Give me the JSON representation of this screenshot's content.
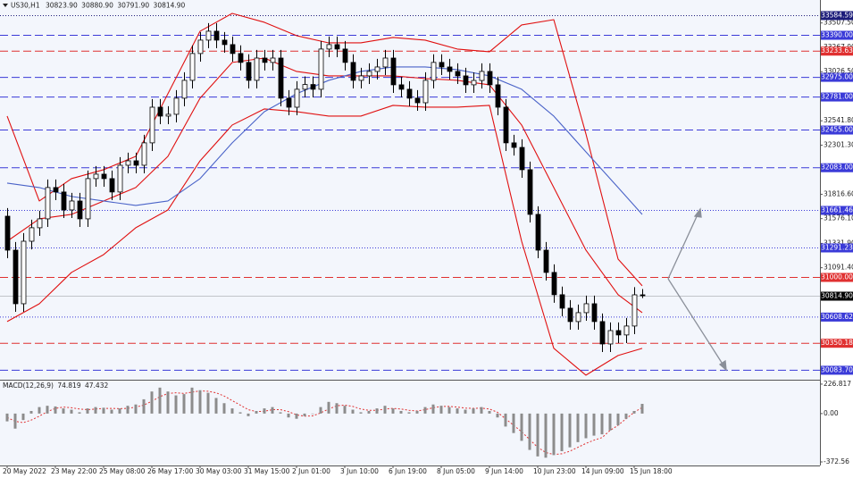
{
  "chart_data": [
    {
      "type": "candlestick",
      "title": "US30,H1",
      "last_bar_labels": [
        "30823.90",
        "30880.90",
        "30791.90",
        "30814.90"
      ],
      "categories": [
        "20 May 2022",
        null,
        null,
        null,
        null,
        null,
        "23 May 22:00",
        null,
        null,
        null,
        null,
        null,
        "25 May 08:00",
        null,
        null,
        null,
        null,
        null,
        "26 May 17:00",
        null,
        null,
        null,
        null,
        null,
        "30 May 03:00",
        null,
        null,
        null,
        null,
        null,
        "31 May 15:00",
        null,
        null,
        null,
        null,
        null,
        "2 Jun 01:00",
        null,
        null,
        null,
        null,
        null,
        "3 Jun 10:00",
        null,
        null,
        null,
        null,
        null,
        "6 Jun 19:00",
        null,
        null,
        null,
        null,
        null,
        "8 Jun 05:00",
        null,
        null,
        null,
        null,
        null,
        "9 Jun 14:00",
        null,
        null,
        null,
        null,
        null,
        "10 Jun 23:00",
        null,
        null,
        null,
        null,
        null,
        "14 Jun 09:00",
        null,
        null,
        null,
        null,
        null,
        "15 Jun 18:00",
        null
      ],
      "ohlc": [
        [
          31600,
          31680,
          31185,
          31265
        ],
        [
          31265,
          31345,
          30656,
          30736
        ],
        [
          30736,
          31433,
          30656,
          31353
        ],
        [
          31353,
          31566,
          31273,
          31486
        ],
        [
          31486,
          31654,
          31406,
          31574
        ],
        [
          31574,
          31963,
          31494,
          31883
        ],
        [
          31883,
          31963,
          31759,
          31839
        ],
        [
          31839,
          31919,
          31582,
          31662
        ],
        [
          31662,
          31830,
          31582,
          31750
        ],
        [
          31750,
          31830,
          31494,
          31574
        ],
        [
          31574,
          32051,
          31494,
          31971
        ],
        [
          31971,
          32095,
          31891,
          32015
        ],
        [
          32015,
          32095,
          31891,
          31971
        ],
        [
          31971,
          32051,
          31759,
          31839
        ],
        [
          31839,
          32183,
          31759,
          32103
        ],
        [
          32103,
          32227,
          32023,
          32147
        ],
        [
          32147,
          32227,
          32023,
          32103
        ],
        [
          32103,
          32404,
          32023,
          32324
        ],
        [
          32324,
          32756,
          32244,
          32676
        ],
        [
          32676,
          32756,
          32508,
          32588
        ],
        [
          32588,
          32686,
          32508,
          32606
        ],
        [
          32606,
          32845,
          32526,
          32765
        ],
        [
          32765,
          33021,
          32685,
          32941
        ],
        [
          32941,
          33286,
          32861,
          33206
        ],
        [
          33206,
          33418,
          33126,
          33338
        ],
        [
          33338,
          33506,
          33258,
          33426
        ],
        [
          33426,
          33506,
          33258,
          33338
        ],
        [
          33338,
          33418,
          33214,
          33294
        ],
        [
          33294,
          33374,
          33126,
          33206
        ],
        [
          33206,
          33286,
          33038,
          33118
        ],
        [
          33118,
          33198,
          32861,
          32941
        ],
        [
          32941,
          33241,
          32861,
          33161
        ],
        [
          33161,
          33241,
          33038,
          33118
        ],
        [
          33118,
          33241,
          33038,
          33161
        ],
        [
          33161,
          33241,
          32685,
          32765
        ],
        [
          32765,
          32845,
          32596,
          32676
        ],
        [
          32676,
          32933,
          32596,
          32853
        ],
        [
          32853,
          32980,
          32773,
          32900
        ],
        [
          32900,
          32980,
          32773,
          32853
        ],
        [
          32853,
          33330,
          32773,
          33250
        ],
        [
          33250,
          33374,
          33170,
          33294
        ],
        [
          33294,
          33374,
          33170,
          33250
        ],
        [
          33250,
          33330,
          33038,
          33118
        ],
        [
          33118,
          33198,
          32861,
          32941
        ],
        [
          32941,
          33065,
          32861,
          32985
        ],
        [
          32985,
          33109,
          32905,
          33029
        ],
        [
          33029,
          33153,
          32949,
          33073
        ],
        [
          33073,
          33241,
          32993,
          33161
        ],
        [
          33161,
          33241,
          32817,
          32897
        ],
        [
          32897,
          32977,
          32773,
          32853
        ],
        [
          32853,
          32933,
          32685,
          32765
        ],
        [
          32765,
          32845,
          32640,
          32720
        ],
        [
          32720,
          33021,
          32640,
          32941
        ],
        [
          32941,
          33198,
          32861,
          33118
        ],
        [
          33118,
          33198,
          32993,
          33073
        ],
        [
          33073,
          33153,
          32949,
          33029
        ],
        [
          33029,
          33109,
          32905,
          32985
        ],
        [
          32985,
          33065,
          32817,
          32897
        ],
        [
          32897,
          33020,
          32817,
          32940
        ],
        [
          32940,
          33109,
          32860,
          33029
        ],
        [
          33029,
          33109,
          32817,
          32897
        ],
        [
          32897,
          32977,
          32596,
          32676
        ],
        [
          32676,
          32756,
          32244,
          32324
        ],
        [
          32324,
          32404,
          32199,
          32279
        ],
        [
          32279,
          32359,
          31979,
          32059
        ],
        [
          32059,
          32139,
          31538,
          31618
        ],
        [
          31618,
          31698,
          31185,
          31265
        ],
        [
          31265,
          31345,
          30965,
          31045
        ],
        [
          31045,
          31125,
          30745,
          30825
        ],
        [
          30825,
          30905,
          30612,
          30692
        ],
        [
          30692,
          30772,
          30480,
          30560
        ],
        [
          30560,
          30728,
          30480,
          30648
        ],
        [
          30648,
          30816,
          30568,
          30736
        ],
        [
          30736,
          30816,
          30480,
          30560
        ],
        [
          30560,
          30640,
          30259,
          30339
        ],
        [
          30339,
          30551,
          30259,
          30471
        ],
        [
          30471,
          30551,
          30348,
          30428
        ],
        [
          30428,
          30596,
          30348,
          30516
        ],
        [
          30516,
          30900,
          30436,
          30823.9
        ],
        [
          30823.9,
          30880.9,
          30791.9,
          30814.9
        ]
      ],
      "lines": [
        {
          "color": "#e01010",
          "x": [
            0,
            4,
            8,
            12,
            16,
            20,
            24,
            28,
            32,
            36,
            40,
            44,
            48,
            52,
            56,
            60,
            64,
            68,
            72,
            76,
            79
          ],
          "values": [
            32588,
            31750,
            31971,
            32059,
            32191,
            32809,
            33426,
            33602,
            33514,
            33382,
            33311,
            33311,
            33364,
            33338,
            33250,
            33223,
            33488,
            33540,
            32412,
            31177,
            30913
          ]
        },
        {
          "color": "#e01010",
          "x": [
            0,
            4,
            8,
            12,
            16,
            20,
            24,
            28,
            32,
            36,
            40,
            44,
            48,
            52,
            56,
            60,
            64,
            68,
            72,
            76,
            79
          ],
          "values": [
            31353,
            31574,
            31618,
            31750,
            31883,
            32191,
            32765,
            33118,
            33161,
            33029,
            32985,
            32985,
            32985,
            32959,
            32941,
            32897,
            32500,
            31883,
            31265,
            30825,
            30648
          ]
        },
        {
          "color": "#e01010",
          "x": [
            0,
            4,
            8,
            12,
            16,
            20,
            24,
            28,
            32,
            36,
            40,
            44,
            48,
            52,
            56,
            60,
            64,
            68,
            72,
            76,
            79
          ],
          "values": [
            30560,
            30736,
            31045,
            31221,
            31486,
            31662,
            32147,
            32500,
            32659,
            32632,
            32588,
            32588,
            32694,
            32676,
            32676,
            32694,
            31353,
            30296,
            30031,
            30225,
            30296
          ]
        },
        {
          "color": "#4a63c8",
          "x": [
            0,
            4,
            8,
            12,
            16,
            20,
            24,
            28,
            32,
            36,
            40,
            44,
            48,
            52,
            56,
            60,
            64,
            68,
            72,
            76,
            79
          ],
          "values": [
            31927,
            31883,
            31795,
            31750,
            31706,
            31750,
            31971,
            32324,
            32632,
            32809,
            32941,
            33029,
            33073,
            33073,
            33047,
            32985,
            32853,
            32588,
            32235,
            31883,
            31618
          ]
        }
      ],
      "levels": [
        {
          "value": 33584.59,
          "label": "33584.59",
          "color": "#1c1c7a",
          "style": "dotted"
        },
        {
          "value": 33390,
          "label": "33390.00",
          "color": "#3a3ad8",
          "style": "dashed"
        },
        {
          "value": 33233.63,
          "label": "33233.63",
          "color": "#e03030",
          "style": "dashed"
        },
        {
          "value": 32975,
          "label": "32975.00",
          "color": "#3a3ad8",
          "style": "dashed"
        },
        {
          "value": 32781,
          "label": "32781.00",
          "color": "#3a3ad8",
          "style": "dashed"
        },
        {
          "value": 32455,
          "label": "32455.00",
          "color": "#3a3ad8",
          "style": "dashed"
        },
        {
          "value": 32083,
          "label": "32083.00",
          "color": "#3a3ad8",
          "style": "dashed"
        },
        {
          "value": 31661.46,
          "label": "31661.46",
          "color": "#3a3ad8",
          "style": "dotted"
        },
        {
          "value": 31291.23,
          "label": "31291.23",
          "color": "#3a3ad8",
          "style": "dotted"
        },
        {
          "value": 31000,
          "label": "31000.00",
          "color": "#e03030",
          "style": "dashed"
        },
        {
          "value": 30814.9,
          "label": "30814.90",
          "color": "#000000",
          "style": "solid"
        },
        {
          "value": 30608.62,
          "label": "30608.62",
          "color": "#3a3ad8",
          "style": "dotted"
        },
        {
          "value": 30350.18,
          "label": "30350.18",
          "color": "#e03030",
          "style": "dashed"
        },
        {
          "value": 30083.7,
          "label": "30083.70",
          "color": "#3a3ad8",
          "style": "dashed"
        }
      ],
      "ylim": [
        29986,
        33690
      ],
      "yticks": [
        {
          "value": 33507.5,
          "label": "33507.50"
        },
        {
          "value": 33267,
          "label": "33267.00"
        },
        {
          "value": 33026.5,
          "label": "33026.50"
        },
        {
          "value": 32541.8,
          "label": "32541.80"
        },
        {
          "value": 32301.3,
          "label": "32301.30"
        },
        {
          "value": 31816.6,
          "label": "31816.60"
        },
        {
          "value": 31576.1,
          "label": "31576.10"
        },
        {
          "value": 31331.9,
          "label": "31331.90"
        },
        {
          "value": 31091.4,
          "label": "31091.40"
        }
      ]
    },
    {
      "type": "bar",
      "title": "MACD(12,26,9)",
      "series": [
        {
          "color": "#8c8c8c",
          "values": [
            -60,
            -116,
            -50,
            20,
            50,
            60,
            55,
            40,
            30,
            10,
            40,
            50,
            45,
            30,
            40,
            60,
            70,
            110,
            170,
            200,
            170,
            140,
            150,
            200,
            180,
            160,
            120,
            80,
            40,
            10,
            -20,
            20,
            40,
            50,
            10,
            -30,
            -40,
            -20,
            0,
            50,
            90,
            80,
            60,
            30,
            10,
            20,
            40,
            60,
            40,
            20,
            10,
            20,
            50,
            70,
            60,
            50,
            40,
            30,
            40,
            50,
            20,
            -30,
            -100,
            -150,
            -210,
            -280,
            -330,
            -340,
            -320,
            -290,
            -260,
            -220,
            -190,
            -170,
            -160,
            -130,
            -90,
            -40,
            20,
            74.819
          ]
        },
        {
          "color": "#e03030",
          "style": "dotted",
          "values": [
            -30,
            -60,
            -70,
            -50,
            -20,
            15,
            40,
            50,
            45,
            35,
            30,
            35,
            40,
            40,
            38,
            40,
            50,
            65,
            95,
            130,
            155,
            160,
            155,
            165,
            175,
            172,
            160,
            135,
            100,
            65,
            30,
            15,
            18,
            30,
            30,
            15,
            -10,
            -20,
            -18,
            5,
            35,
            60,
            65,
            55,
            35,
            25,
            25,
            35,
            40,
            35,
            25,
            20,
            30,
            45,
            55,
            55,
            50,
            42,
            40,
            42,
            35,
            10,
            -40,
            -90,
            -140,
            -200,
            -260,
            -300,
            -315,
            -310,
            -290,
            -260,
            -230,
            -205,
            -185,
            -130,
            -90,
            -40,
            10,
            47.432
          ]
        }
      ],
      "ylim": [
        -400,
        247
      ],
      "yticks": [
        226.817,
        {
          "value": 0,
          "label": "0.00"
        },
        -372.56
      ]
    }
  ]
}
